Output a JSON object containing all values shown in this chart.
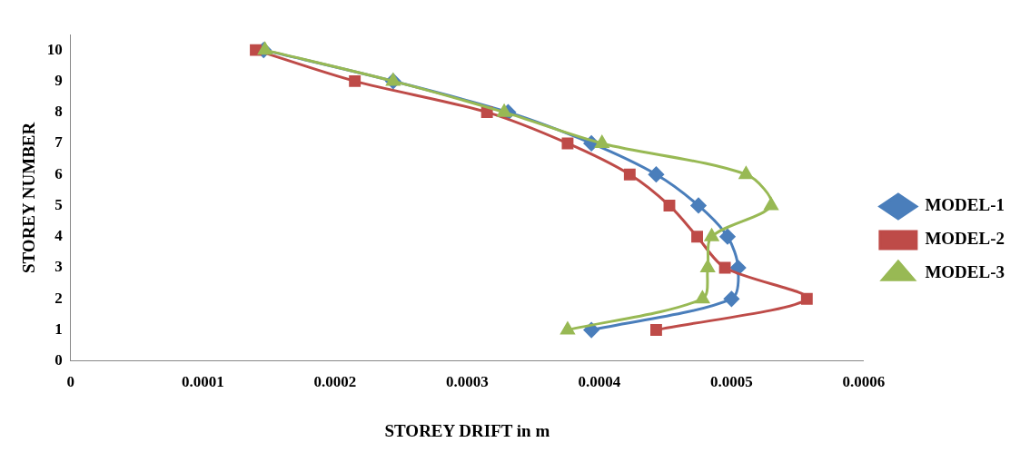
{
  "chart_data": {
    "type": "line",
    "xlabel": "STOREY DRIFT in m",
    "ylabel": "STOREY NUMBER",
    "xlim": [
      0,
      0.0006
    ],
    "xticks": [
      0,
      0.0001,
      0.0002,
      0.0003,
      0.0004,
      0.0005,
      0.0006
    ],
    "ylim": [
      0,
      10.5
    ],
    "yticks": [
      0,
      1,
      2,
      3,
      4,
      5,
      6,
      7,
      8,
      9,
      10
    ],
    "grid": false,
    "legend": "right",
    "series": [
      {
        "name": "MODEL-1",
        "color": "#4a7ebb",
        "marker": "diamond",
        "x": [
          0.000146,
          0.000244,
          0.000331,
          0.000394,
          0.000443,
          0.000475,
          0.000497,
          0.000505,
          0.0005,
          0.000394
        ],
        "values": [
          10,
          9,
          8,
          7,
          6,
          5,
          4,
          3,
          2,
          1
        ]
      },
      {
        "name": "MODEL-2",
        "color": "#be4b48",
        "marker": "square",
        "x": [
          0.00014,
          0.000215,
          0.000315,
          0.000376,
          0.000423,
          0.000453,
          0.000474,
          0.000495,
          0.000557,
          0.000443
        ],
        "values": [
          10,
          9,
          8,
          7,
          6,
          5,
          4,
          3,
          2,
          1
        ]
      },
      {
        "name": "MODEL-3",
        "color": "#98b954",
        "marker": "triangle",
        "x": [
          0.000147,
          0.000244,
          0.000328,
          0.000402,
          0.000511,
          0.00053,
          0.000485,
          0.000482,
          0.000478,
          0.000376
        ],
        "values": [
          10,
          9,
          8,
          7,
          6,
          5,
          4,
          3,
          2,
          1
        ]
      }
    ]
  }
}
